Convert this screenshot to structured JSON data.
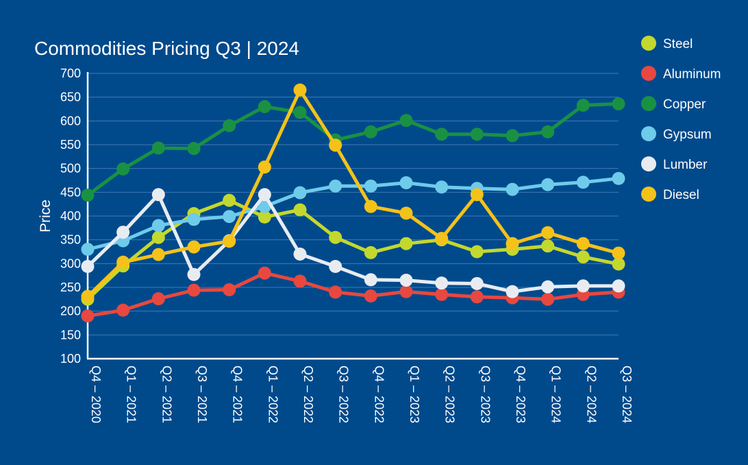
{
  "chart_data": {
    "type": "line",
    "title": "Commodities Pricing Q3 | 2024",
    "xlabel": "",
    "ylabel": "Price",
    "ylim": [
      100,
      700
    ],
    "yticks": [
      100,
      150,
      200,
      250,
      300,
      350,
      400,
      450,
      500,
      550,
      600,
      650,
      700
    ],
    "grid": true,
    "legend_position": "right",
    "categories": [
      "Q4 – 2020",
      "Q1 – 2021",
      "Q2 – 2021",
      "Q3 – 2021",
      "Q4 – 2021",
      "Q1 – 2022",
      "Q2 – 2022",
      "Q3 – 2022",
      "Q4 – 2022",
      "Q1 – 2023",
      "Q2 – 2023",
      "Q3 – 2023",
      "Q4 – 2023",
      "Q1 – 2024",
      "Q2 – 2024",
      "Q3 – 2024"
    ],
    "series": [
      {
        "name": "Steel",
        "color": "#c3d82e",
        "values": [
          225,
          295,
          355,
          405,
          433,
          398,
          413,
          355,
          323,
          342,
          350,
          325,
          330,
          337,
          314,
          299
        ]
      },
      {
        "name": "Aluminum",
        "color": "#e8483f",
        "values": [
          190,
          202,
          226,
          244,
          245,
          280,
          263,
          240,
          232,
          241,
          235,
          230,
          228,
          225,
          235,
          240
        ]
      },
      {
        "name": "Copper",
        "color": "#1a9142",
        "values": [
          444,
          499,
          543,
          542,
          590,
          630,
          618,
          560,
          577,
          601,
          572,
          572,
          569,
          577,
          633,
          636
        ]
      },
      {
        "name": "Gypsum",
        "color": "#6ecbea",
        "values": [
          330,
          348,
          380,
          393,
          399,
          420,
          449,
          463,
          463,
          470,
          461,
          458,
          456,
          466,
          471,
          479
        ]
      },
      {
        "name": "Lumber",
        "color": "#e8ecf1",
        "values": [
          294,
          366,
          445,
          277,
          348,
          445,
          320,
          294,
          266,
          265,
          259,
          258,
          241,
          251,
          253,
          253
        ]
      },
      {
        "name": "Diesel",
        "color": "#f4c219",
        "values": [
          231,
          303,
          319,
          335,
          347,
          503,
          665,
          549,
          420,
          406,
          353,
          445,
          342,
          365,
          342,
          322
        ]
      }
    ]
  }
}
